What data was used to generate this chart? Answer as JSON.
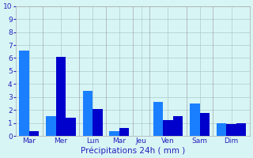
{
  "days": [
    "Mar",
    "Mer",
    "Lun",
    "Mar",
    "Jeu",
    "Ven",
    "Sam",
    "Dim"
  ],
  "bars_per_day": [
    [
      6.6,
      0.4
    ],
    [
      1.5,
      6.1,
      1.4
    ],
    [
      3.5,
      2.1
    ],
    [
      0.4,
      0.6
    ],
    [],
    [
      2.6,
      1.2,
      1.5
    ],
    [
      2.5,
      1.8
    ],
    [
      1.0,
      0.9,
      1.0
    ]
  ],
  "bar_color_dark": "#0000cc",
  "bar_color_light": "#1a7fff",
  "bg_color": "#d8f5f5",
  "grid_color": "#aacccc",
  "sep_color": "#999999",
  "text_color": "#2222bb",
  "xlabel": "Précipitations 24h ( mm )",
  "ylim": [
    0,
    10
  ],
  "yticks": [
    0,
    1,
    2,
    3,
    4,
    5,
    6,
    7,
    8,
    9,
    10
  ]
}
